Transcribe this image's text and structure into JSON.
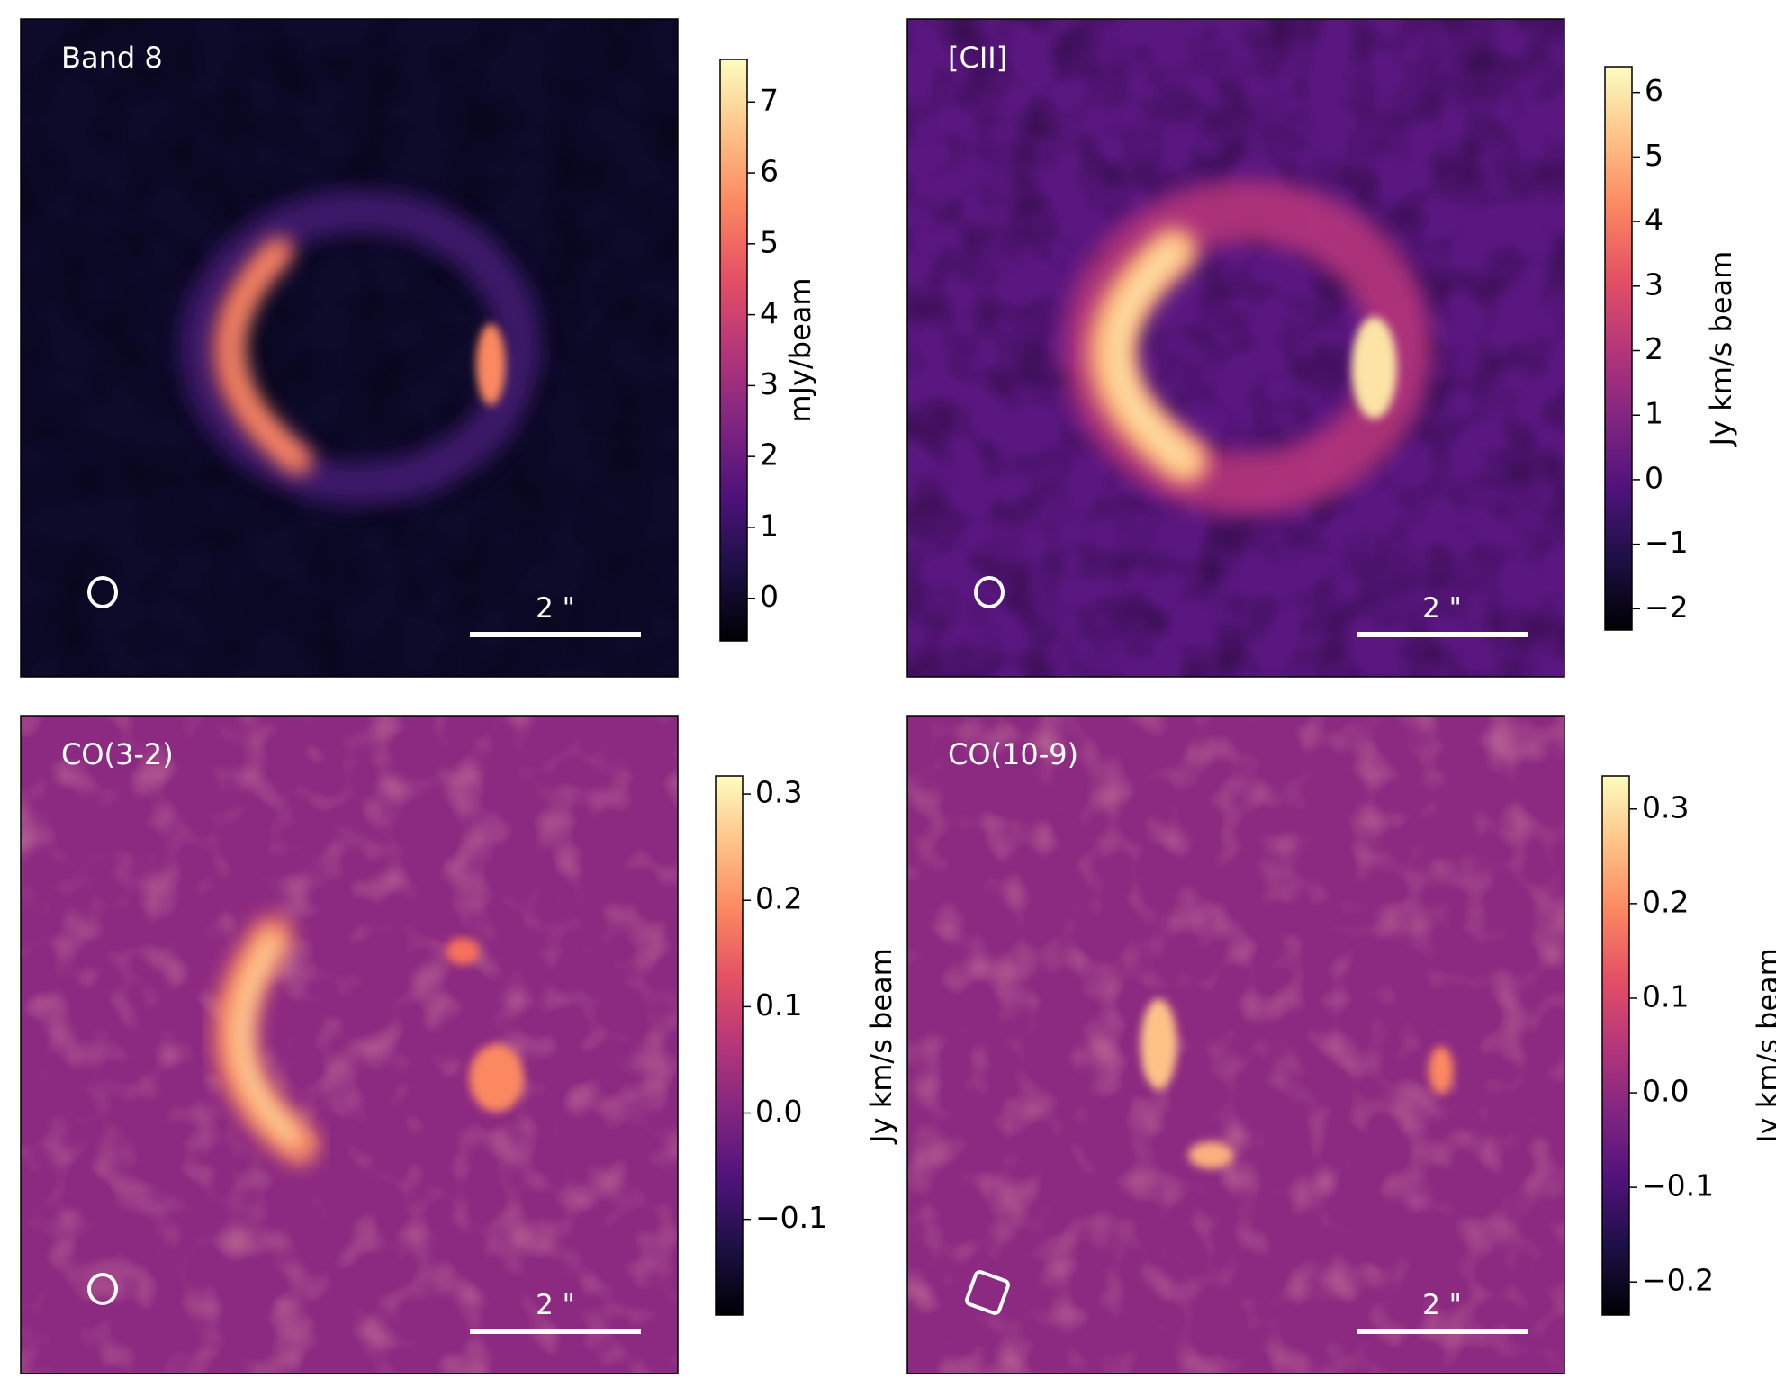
{
  "chart_data": [
    {
      "type": "image",
      "title": "Band 8",
      "colormap": "magma",
      "scale_bar_label": "2 \"",
      "colorbar": {
        "label": "mJy/beam",
        "lim": [
          -0.6,
          7.6
        ],
        "ticks": [
          0,
          1,
          2,
          3,
          4,
          5,
          6,
          7
        ]
      }
    },
    {
      "type": "image",
      "title": "[CII]",
      "colormap": "magma",
      "scale_bar_label": "2 \"",
      "colorbar": {
        "label": "Jy km/s beam",
        "lim": [
          -2.33,
          6.4
        ],
        "ticks": [
          {
            "value": -2,
            "label": "−2"
          },
          {
            "value": -1,
            "label": "−1"
          },
          0,
          1,
          2,
          3,
          4,
          5,
          6
        ]
      }
    },
    {
      "type": "image",
      "title": "CO(3-2)",
      "colormap": "magma",
      "scale_bar_label": "2 \"",
      "colorbar": {
        "label": "Jy km/s beam",
        "lim": [
          -0.19,
          0.317
        ],
        "ticks": [
          {
            "value": -0.1,
            "label": "−0.1"
          },
          {
            "value": 0,
            "label": "0.0"
          },
          0.1,
          0.2,
          0.3
        ]
      }
    },
    {
      "type": "image",
      "title": "CO(10-9)",
      "colormap": "magma",
      "scale_bar_label": "2 \"",
      "colorbar": {
        "label": "Jy km/s beam",
        "lim": [
          -0.235,
          0.335
        ],
        "ticks": [
          {
            "value": -0.2,
            "label": "−0.2"
          },
          {
            "value": -0.1,
            "label": "−0.1"
          },
          {
            "value": 0,
            "label": "0.0"
          },
          0.1,
          0.2,
          0.3
        ]
      }
    }
  ]
}
